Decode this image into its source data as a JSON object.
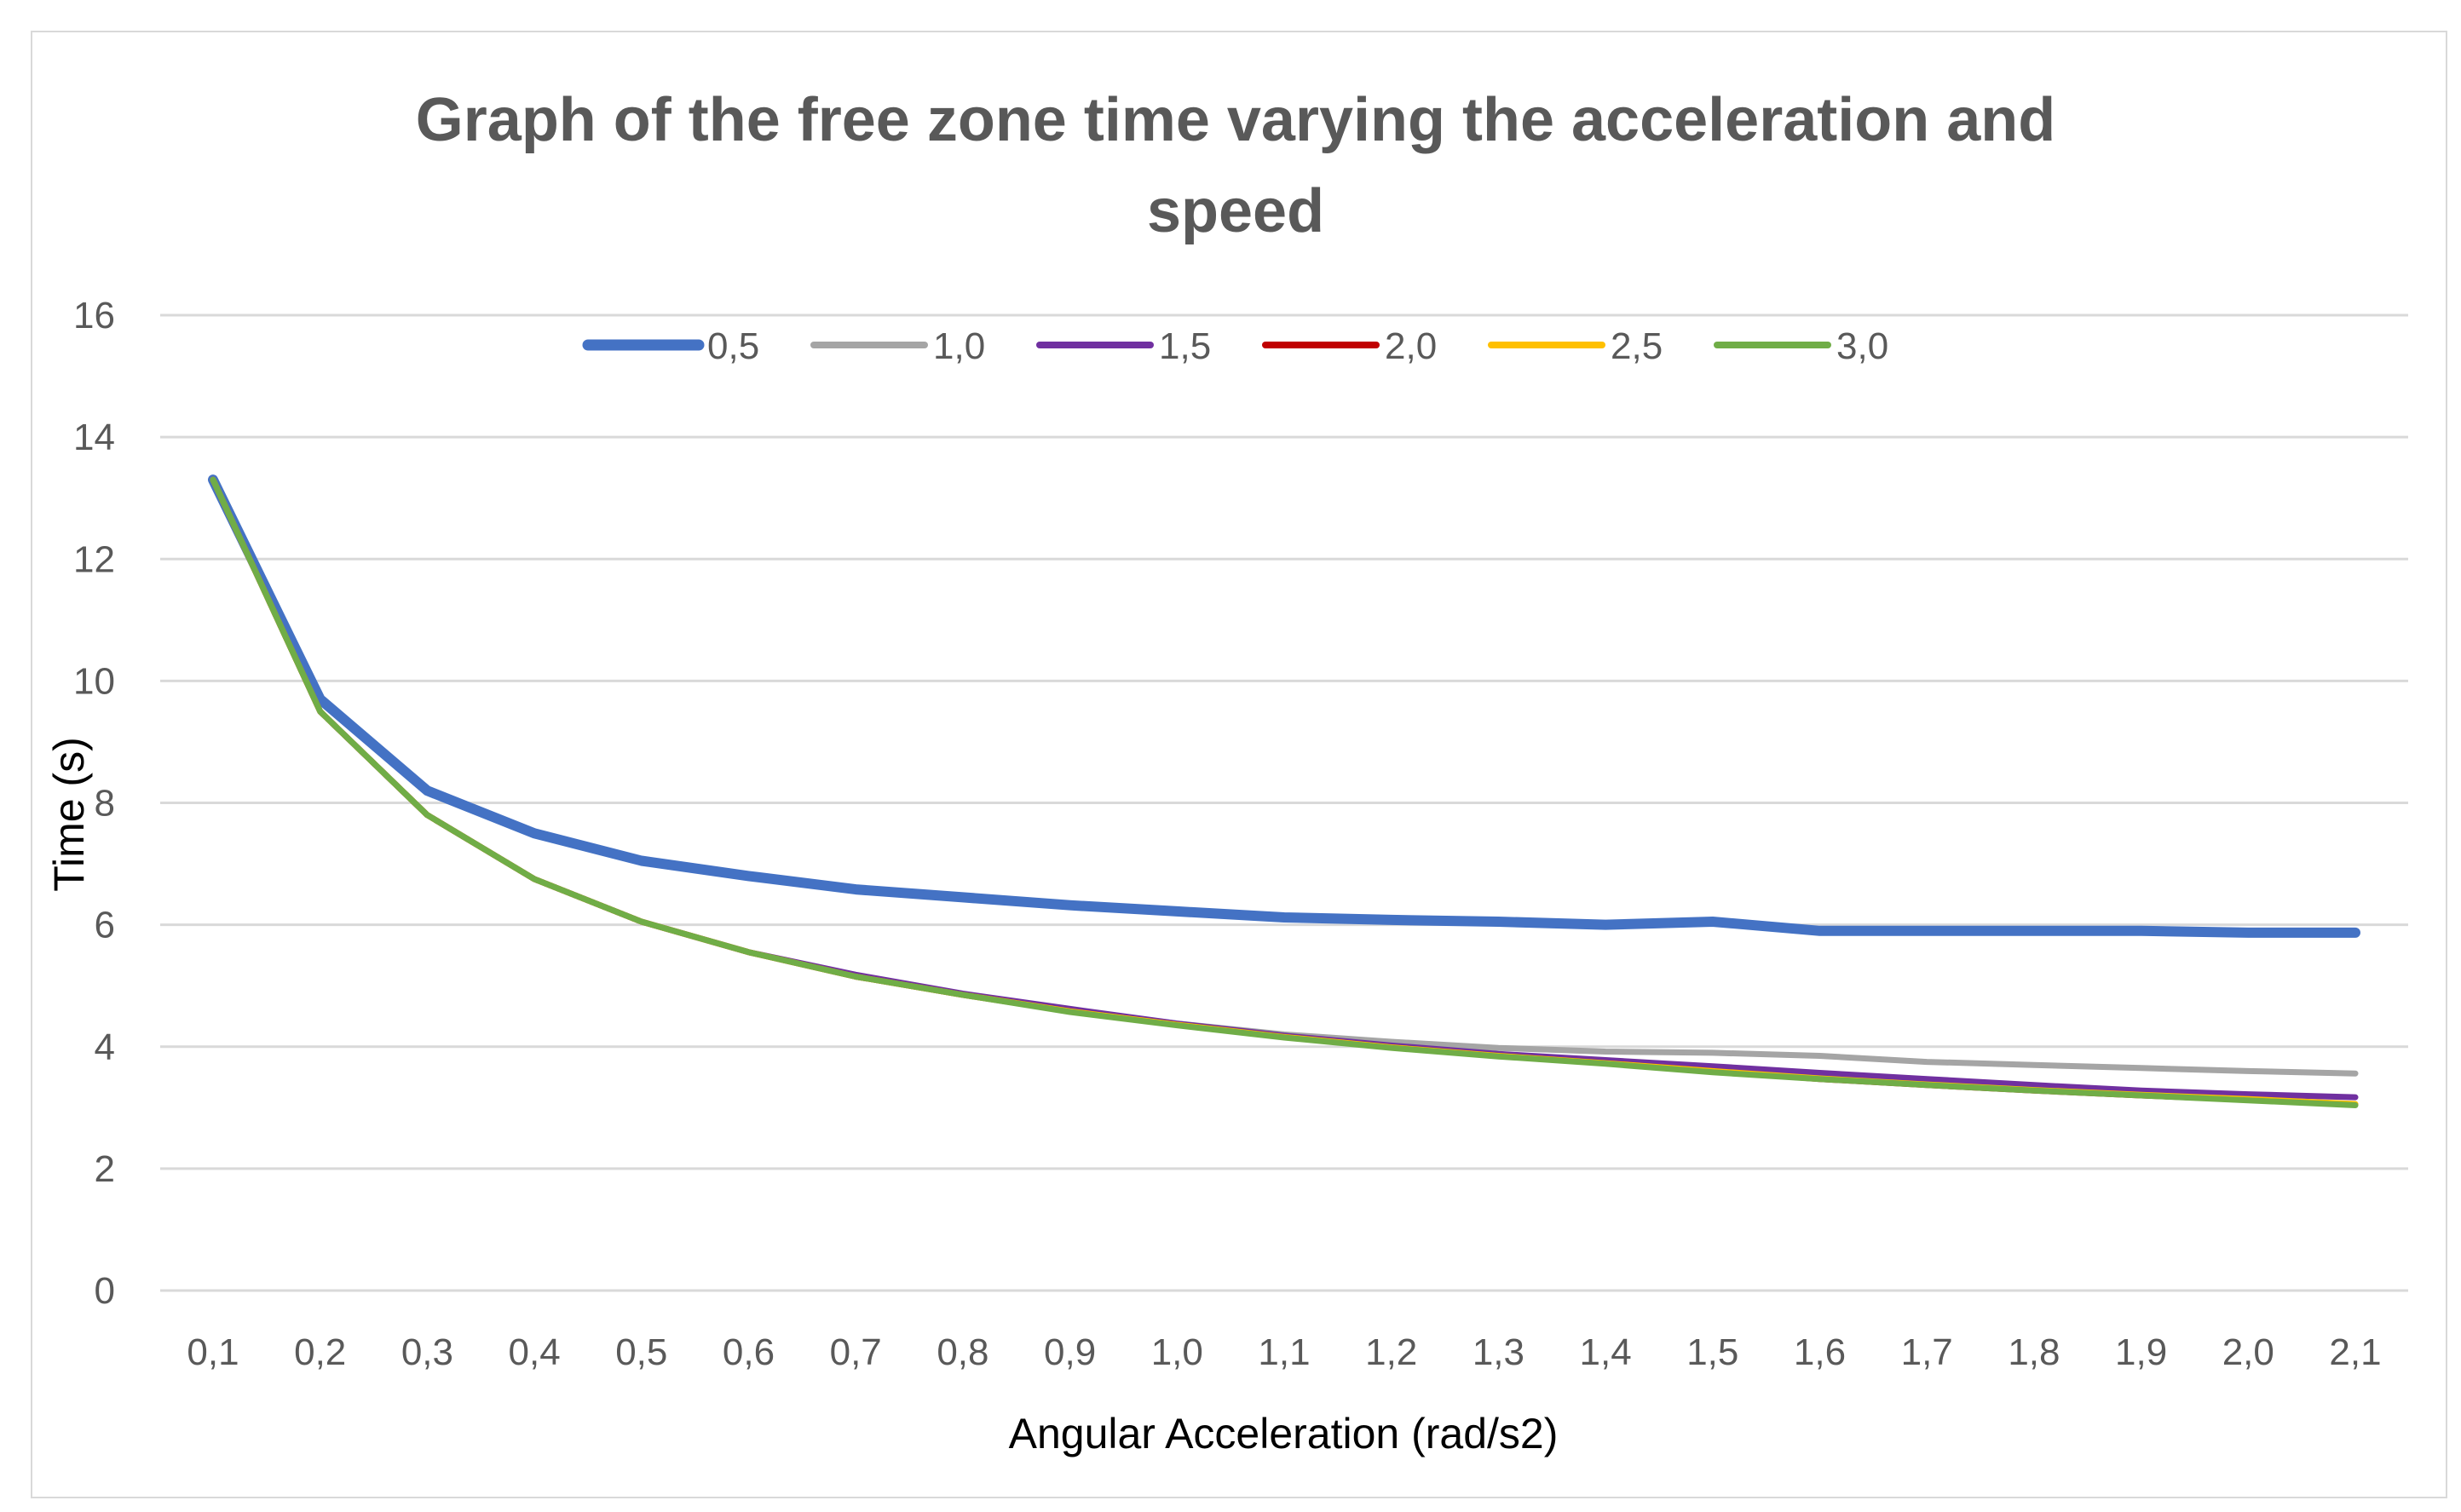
{
  "chart_data": {
    "type": "line",
    "title_lines": [
      "Graph of the free zone time varying the acceleration and",
      "speed"
    ],
    "xlabel": "Angular Acceleration (rad/s2)",
    "ylabel": "Time (s)",
    "ylim": [
      0,
      16
    ],
    "yticks": [
      "0",
      "2",
      "4",
      "6",
      "8",
      "10",
      "12",
      "14",
      "16"
    ],
    "grid": true,
    "legend_position": "top",
    "categories": [
      "0,1",
      "0,2",
      "0,3",
      "0,4",
      "0,5",
      "0,6",
      "0,7",
      "0,8",
      "0,9",
      "1,0",
      "1,1",
      "1,2",
      "1,3",
      "1,4",
      "1,5",
      "1,6",
      "1,7",
      "1,8",
      "1,9",
      "2,0",
      "2,1"
    ],
    "series": [
      {
        "name": "0,5",
        "color": "#4472c4",
        "values": [
          13.3,
          9.7,
          8.2,
          7.5,
          7.05,
          6.8,
          6.58,
          6.45,
          6.32,
          6.22,
          6.12,
          6.08,
          6.05,
          6.0,
          6.05,
          5.9,
          5.9,
          5.9,
          5.9,
          5.87,
          5.87
        ]
      },
      {
        "name": "1,0",
        "color": "#a5a5a5",
        "values": [
          13.3,
          9.5,
          7.8,
          6.75,
          6.05,
          5.55,
          5.15,
          4.85,
          4.6,
          4.38,
          4.2,
          4.08,
          3.98,
          3.92,
          3.9,
          3.85,
          3.75,
          3.7,
          3.65,
          3.6,
          3.56
        ]
      },
      {
        "name": "1,5",
        "color": "#7030a0",
        "values": [
          13.3,
          9.5,
          7.8,
          6.75,
          6.05,
          5.55,
          5.18,
          4.87,
          4.62,
          4.38,
          4.18,
          4.02,
          3.88,
          3.78,
          3.68,
          3.57,
          3.47,
          3.37,
          3.28,
          3.22,
          3.17
        ]
      },
      {
        "name": "2,0",
        "color": "#c00000",
        "values": [
          13.3,
          9.5,
          7.8,
          6.75,
          6.05,
          5.55,
          5.15,
          4.85,
          4.58,
          4.36,
          4.16,
          3.99,
          3.85,
          3.73,
          3.6,
          3.47,
          3.37,
          3.28,
          3.2,
          3.13,
          3.05
        ]
      },
      {
        "name": "2,5",
        "color": "#ffc000",
        "values": [
          13.3,
          9.5,
          7.8,
          6.75,
          6.05,
          5.55,
          5.15,
          4.85,
          4.58,
          4.36,
          4.16,
          3.99,
          3.85,
          3.73,
          3.6,
          3.48,
          3.38,
          3.29,
          3.21,
          3.14,
          3.06
        ]
      },
      {
        "name": "3,0",
        "color": "#70ad47",
        "values": [
          13.3,
          9.5,
          7.8,
          6.75,
          6.05,
          5.55,
          5.15,
          4.85,
          4.57,
          4.35,
          4.15,
          3.98,
          3.84,
          3.72,
          3.58,
          3.47,
          3.37,
          3.28,
          3.2,
          3.12,
          3.04
        ]
      }
    ]
  }
}
